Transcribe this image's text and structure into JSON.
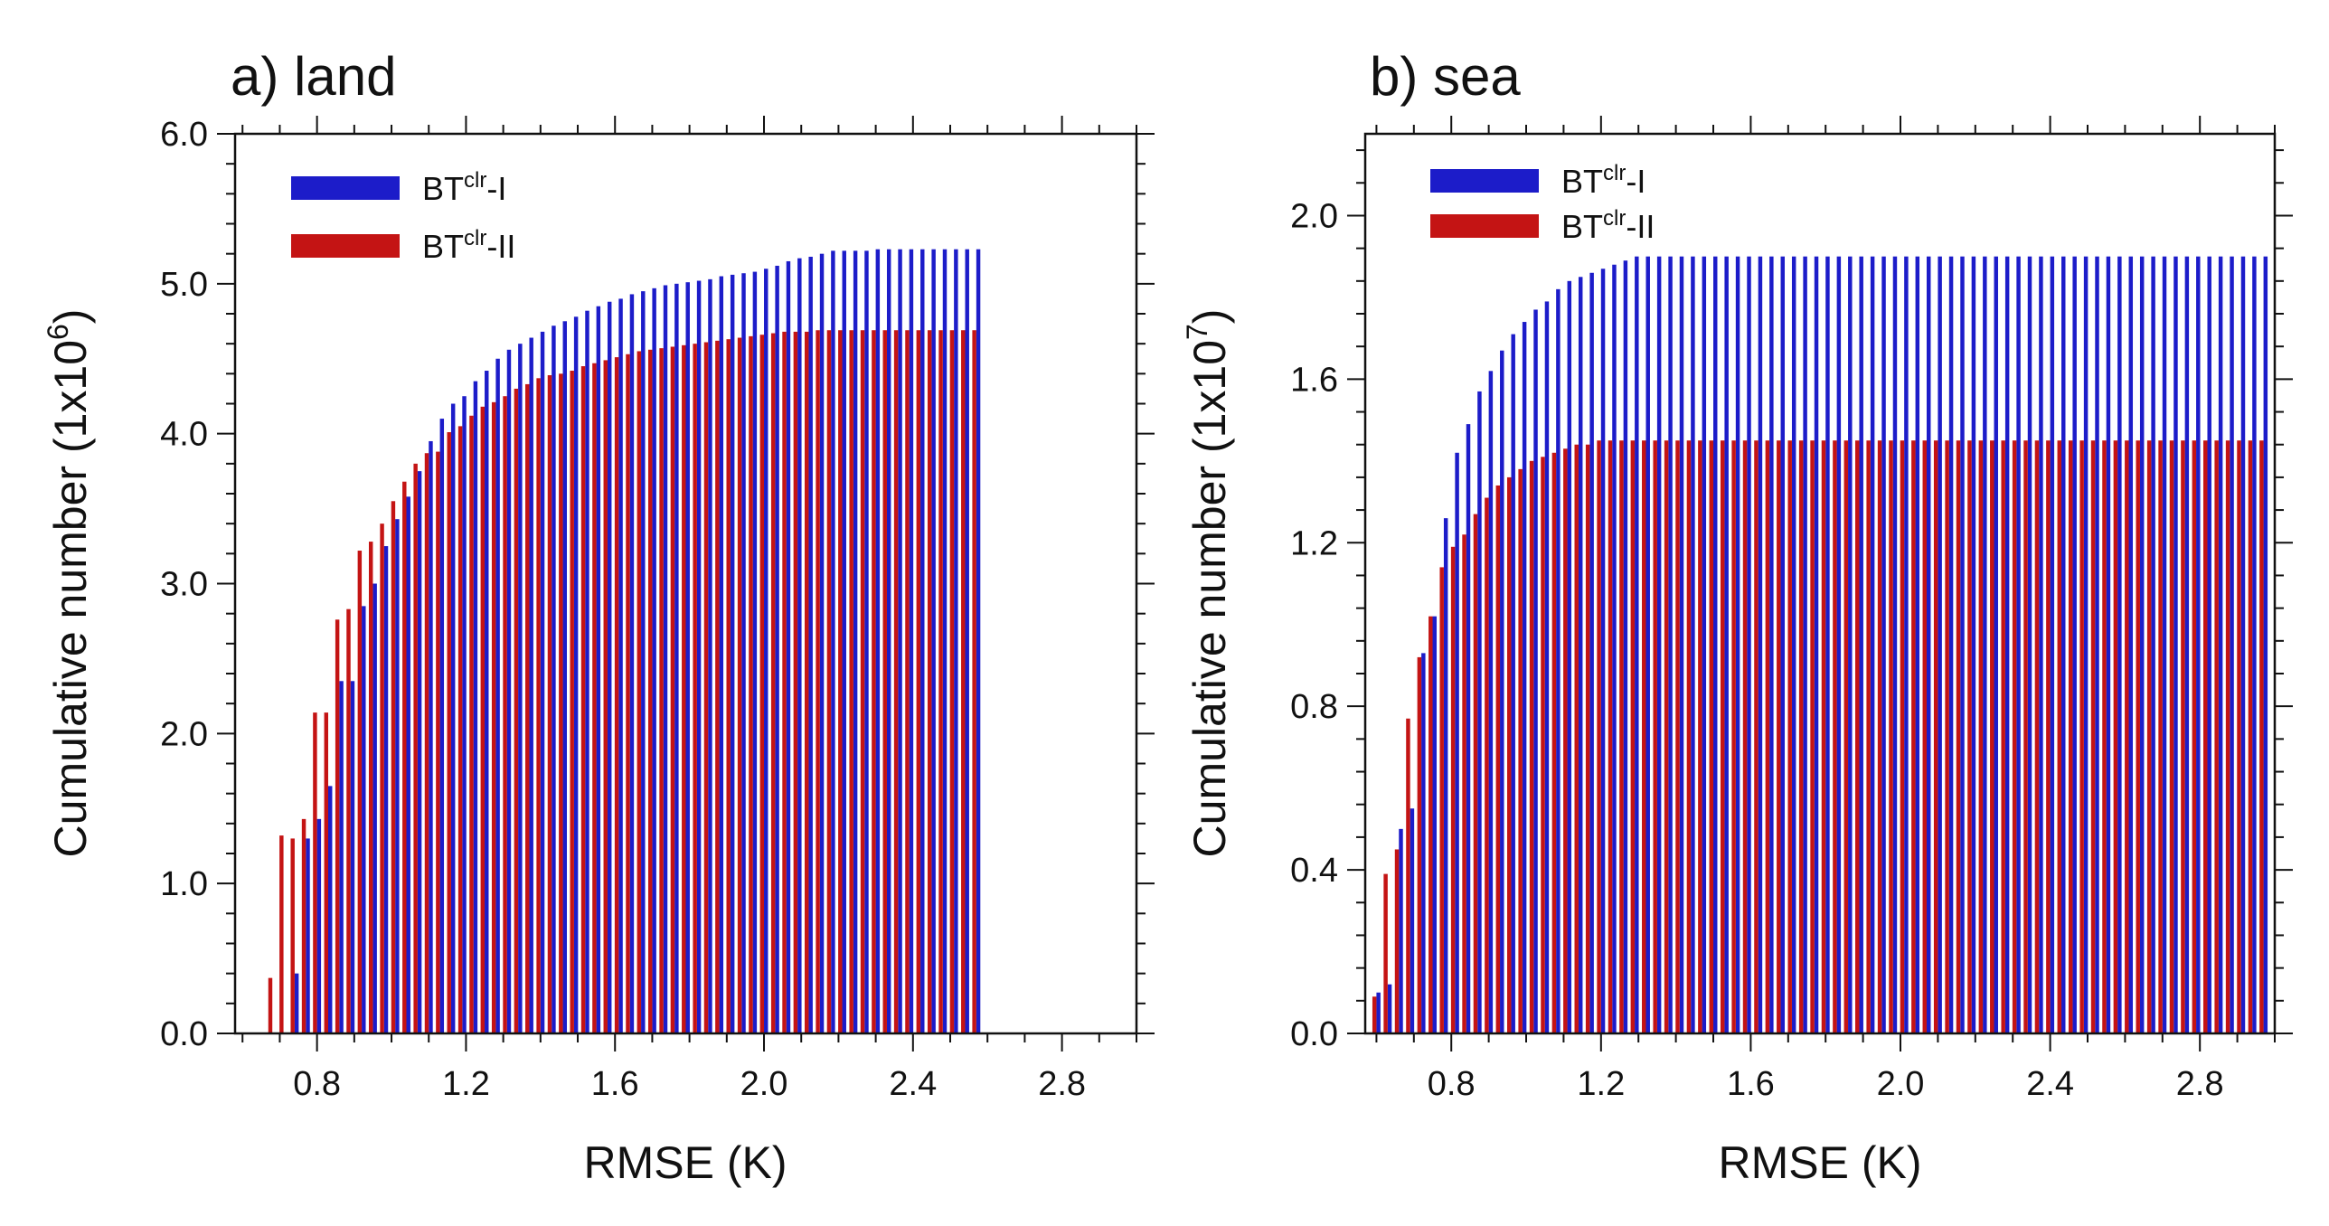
{
  "colors": {
    "series_I": "#1c1cc9",
    "series_II": "#c41414",
    "axis": "#111111"
  },
  "chart_data": [
    {
      "type": "bar",
      "title": "a) land",
      "xlabel": "RMSE (K)",
      "ylabel_text": "Cumulative number (1x10",
      "ylabel_exp": "6",
      "ylabel_close": ")",
      "xlim": [
        0.58,
        3.0
      ],
      "ylim": [
        0,
        6.0
      ],
      "x_start": 0.62,
      "x_step": 0.03,
      "xticks": [
        "0.8",
        "1.2",
        "1.6",
        "2.0",
        "2.4",
        "2.8"
      ],
      "yticks": [
        "0.0",
        "1.0",
        "2.0",
        "3.0",
        "4.0",
        "5.0",
        "6.0"
      ],
      "legend_position": "top-left",
      "series": [
        {
          "name": "BT-I",
          "legend_base": "BT",
          "legend_sup": "clr",
          "legend_suffix": "-I",
          "color_key": "series_I",
          "values": [
            0.0,
            0.0,
            0.0,
            0.0,
            0.4,
            1.3,
            1.43,
            1.65,
            2.35,
            2.35,
            2.85,
            3.0,
            3.25,
            3.43,
            3.58,
            3.75,
            3.95,
            4.1,
            4.2,
            4.25,
            4.35,
            4.42,
            4.5,
            4.56,
            4.6,
            4.64,
            4.68,
            4.72,
            4.75,
            4.78,
            4.82,
            4.85,
            4.88,
            4.9,
            4.93,
            4.95,
            4.97,
            4.99,
            5.0,
            5.01,
            5.02,
            5.03,
            5.05,
            5.06,
            5.07,
            5.08,
            5.1,
            5.12,
            5.15,
            5.17,
            5.18,
            5.2,
            5.22,
            5.22,
            5.22,
            5.22,
            5.23,
            5.23,
            5.23,
            5.23,
            5.23,
            5.23,
            5.23,
            5.23,
            5.23,
            5.23
          ]
        },
        {
          "name": "BT-II",
          "legend_base": "BT",
          "legend_sup": "clr",
          "legend_suffix": "-II",
          "color_key": "series_II",
          "values": [
            0.0,
            0.0,
            0.37,
            1.32,
            1.3,
            1.43,
            2.14,
            2.14,
            2.76,
            2.83,
            3.22,
            3.28,
            3.4,
            3.55,
            3.68,
            3.8,
            3.87,
            3.88,
            4.01,
            4.05,
            4.12,
            4.18,
            4.21,
            4.25,
            4.3,
            4.33,
            4.37,
            4.39,
            4.4,
            4.42,
            4.45,
            4.47,
            4.49,
            4.51,
            4.53,
            4.55,
            4.56,
            4.57,
            4.58,
            4.59,
            4.6,
            4.61,
            4.62,
            4.63,
            4.64,
            4.65,
            4.66,
            4.67,
            4.68,
            4.68,
            4.68,
            4.69,
            4.69,
            4.69,
            4.69,
            4.69,
            4.69,
            4.69,
            4.69,
            4.69,
            4.69,
            4.69,
            4.69,
            4.69,
            4.69,
            4.69
          ]
        }
      ]
    },
    {
      "type": "bar",
      "title": "b) sea",
      "xlabel": "RMSE (K)",
      "ylabel_text": "Cumulative number (1x10",
      "ylabel_exp": "7",
      "ylabel_close": ")",
      "xlim": [
        0.57,
        3.0
      ],
      "ylim": [
        0,
        2.2
      ],
      "x_start": 0.6,
      "x_step": 0.03,
      "xticks": [
        "0.8",
        "1.2",
        "1.6",
        "2.0",
        "2.4",
        "2.8"
      ],
      "yticks": [
        "0.0",
        "0.4",
        "0.8",
        "1.2",
        "1.6",
        "2.0"
      ],
      "legend_position": "top-left",
      "series": [
        {
          "name": "BT-I",
          "legend_base": "BT",
          "legend_sup": "clr",
          "legend_suffix": "-I",
          "color_key": "series_I",
          "values": [
            0.1,
            0.12,
            0.5,
            0.55,
            0.93,
            1.02,
            1.26,
            1.42,
            1.49,
            1.57,
            1.62,
            1.67,
            1.71,
            1.74,
            1.77,
            1.79,
            1.82,
            1.84,
            1.85,
            1.86,
            1.87,
            1.88,
            1.89,
            1.9,
            1.9,
            1.9,
            1.9,
            1.9,
            1.9,
            1.9,
            1.9,
            1.9,
            1.9,
            1.9,
            1.9,
            1.9,
            1.9,
            1.9,
            1.9,
            1.9,
            1.9,
            1.9,
            1.9,
            1.9,
            1.9,
            1.9,
            1.9,
            1.9,
            1.9,
            1.9,
            1.9,
            1.9,
            1.9,
            1.9,
            1.9,
            1.9,
            1.9,
            1.9,
            1.9,
            1.9,
            1.9,
            1.9,
            1.9,
            1.9,
            1.9,
            1.9,
            1.9,
            1.9,
            1.9,
            1.9,
            1.9,
            1.9,
            1.9,
            1.9,
            1.9,
            1.9,
            1.9,
            1.9,
            1.9,
            1.9
          ]
        },
        {
          "name": "BT-II",
          "legend_base": "BT",
          "legend_sup": "clr",
          "legend_suffix": "-II",
          "color_key": "series_II",
          "values": [
            0.09,
            0.39,
            0.45,
            0.77,
            0.92,
            1.02,
            1.14,
            1.19,
            1.22,
            1.27,
            1.31,
            1.34,
            1.36,
            1.38,
            1.4,
            1.41,
            1.42,
            1.43,
            1.44,
            1.44,
            1.45,
            1.45,
            1.45,
            1.45,
            1.45,
            1.45,
            1.45,
            1.45,
            1.45,
            1.45,
            1.45,
            1.45,
            1.45,
            1.45,
            1.45,
            1.45,
            1.45,
            1.45,
            1.45,
            1.45,
            1.45,
            1.45,
            1.45,
            1.45,
            1.45,
            1.45,
            1.45,
            1.45,
            1.45,
            1.45,
            1.45,
            1.45,
            1.45,
            1.45,
            1.45,
            1.45,
            1.45,
            1.45,
            1.45,
            1.45,
            1.45,
            1.45,
            1.45,
            1.45,
            1.45,
            1.45,
            1.45,
            1.45,
            1.45,
            1.45,
            1.45,
            1.45,
            1.45,
            1.45,
            1.45,
            1.45,
            1.45,
            1.45,
            1.45,
            1.45
          ]
        }
      ]
    }
  ]
}
